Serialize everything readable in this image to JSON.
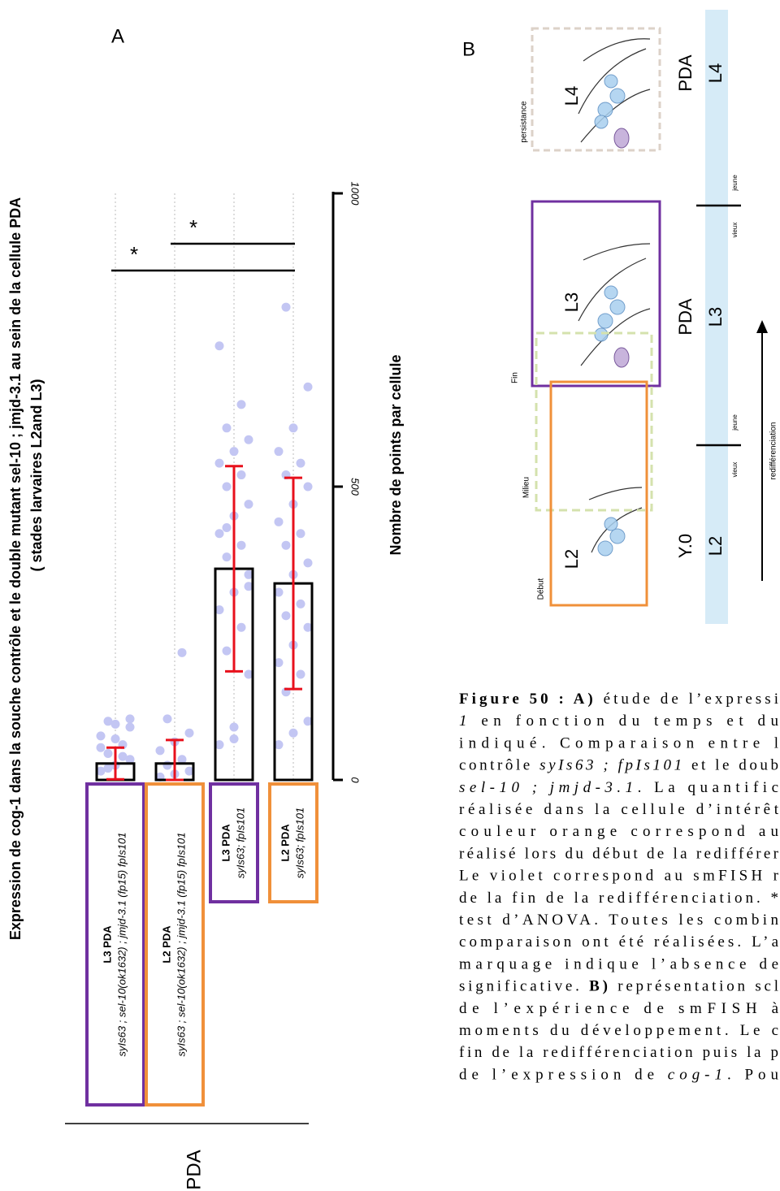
{
  "chart_data": {
    "type": "bar",
    "panel_label": "A",
    "title": "Expression de cog-1 dans la souche contrôle et le double mutant sel-10 ; jmjd-3.1 au sein de la cellule PDA",
    "subtitle": "( stades larvaires L2and L3)",
    "y_label": "Nombre de points par cellule",
    "x_label": "PDA",
    "categories": [
      "L3 PDA",
      "L2 PDA",
      "L3 PDA",
      "L2 PDA"
    ],
    "genotypes": [
      "syIs63 ; sel-10(ok1632) ; jmjd-3.1 (fp15) fpIs101",
      "syIs63 ; sel-10(ok1632) ; jmjd-3.1 (fp15) fpIs101",
      "syIs63; fpIs101",
      "syIs63; fpIs101"
    ],
    "category_colors": [
      "#7030a0",
      "#f0903a",
      "#7030a0",
      "#f0903a"
    ],
    "values": [
      28,
      28,
      360,
      335
    ],
    "errors": [
      27,
      40,
      175,
      180
    ],
    "bar_color": "#000000",
    "error_color": "#e8101c",
    "points": [
      [
        15,
        25,
        35,
        45,
        60,
        75,
        95,
        104,
        20,
        40,
        55,
        70,
        90,
        100
      ],
      [
        5,
        10,
        15,
        25,
        35,
        50,
        65,
        80,
        104,
        217
      ],
      [
        60,
        90,
        180,
        220,
        260,
        290,
        320,
        350,
        380,
        400,
        420,
        450,
        470,
        500,
        520,
        540,
        560,
        580,
        600,
        640,
        740,
        70,
        330,
        430
      ],
      [
        60,
        80,
        100,
        150,
        180,
        200,
        230,
        260,
        280,
        300,
        320,
        350,
        370,
        400,
        420,
        440,
        470,
        500,
        520,
        540,
        560,
        600,
        670,
        806
      ]
    ],
    "point_color": "#c3c6f3",
    "ylim": [
      0,
      1000
    ],
    "yticks": [
      0,
      500,
      1000
    ],
    "annotations": [
      {
        "text": "*",
        "from": 0,
        "to": 3
      },
      {
        "text": "*",
        "from": 1,
        "to": 3
      }
    ]
  },
  "schematic": {
    "label": "B",
    "boxes": [
      {
        "text": "persistance",
        "color": "#dcd2c8"
      },
      {
        "text": "Fin",
        "color": "#7030a0"
      },
      {
        "text": "Milieu",
        "color": "#d4e2ad"
      },
      {
        "text": "Début",
        "color": "#f0903a"
      }
    ],
    "worms": [
      "L4",
      "L3",
      "L2"
    ],
    "timeline": {
      "stages": [
        "L4",
        "L3",
        "L2"
      ],
      "cells": [
        "PDA",
        "PDA",
        "Y.0"
      ],
      "old": "vieux",
      "young": "jeune",
      "arrow_label": "redifférenciation",
      "color": "#d6ebf7"
    }
  },
  "caption": {
    "lines": [
      [
        {
          "text": "Figure 50 : A)",
          "style": "b"
        },
        {
          "text": " étude de l’expressi"
        }
      ],
      [
        {
          "text": "1",
          "style": "i"
        },
        {
          "text": " en fonction du temps et du"
        }
      ],
      [
        {
          "text": "indiqué. Comparaison entre l"
        }
      ],
      [
        {
          "text": "contrôle "
        },
        {
          "text": "syIs63 ; fpIs101",
          "style": "i"
        },
        {
          "text": " et le doub"
        }
      ],
      [
        {
          "text": "sel-10 ; jmjd-3.1",
          "style": "i"
        },
        {
          "text": ". La quantific"
        }
      ],
      [
        {
          "text": "réalisée dans la cellule d’intérêt"
        }
      ],
      [
        {
          "text": "couleur orange correspond au"
        }
      ],
      [
        {
          "text": "réalisé lors du début de la redifférer"
        }
      ],
      [
        {
          "text": "Le violet correspond au smFISH r"
        }
      ],
      [
        {
          "text": "de la fin de la redifférenciation. *"
        }
      ],
      [
        {
          "text": "test d’ANOVA. Toutes les combin"
        }
      ],
      [
        {
          "text": "comparaison ont été réalisées. L’a"
        }
      ],
      [
        {
          "text": "marquage indique l’absence de"
        }
      ],
      [
        {
          "text": "significative. "
        },
        {
          "text": "B)",
          "style": "b"
        },
        {
          "text": " représentation scl"
        }
      ],
      [
        {
          "text": "de l’expérience de smFISH à"
        }
      ],
      [
        {
          "text": "moments du développement. Le c"
        }
      ],
      [
        {
          "text": "fin de la redifférenciation puis la p"
        }
      ],
      [
        {
          "text": "de l’expression de "
        },
        {
          "text": "cog-1",
          "style": "i"
        },
        {
          "text": ". Pou"
        }
      ]
    ]
  }
}
